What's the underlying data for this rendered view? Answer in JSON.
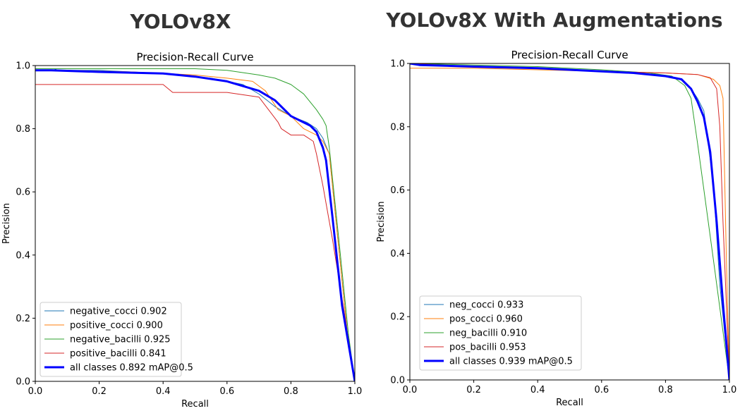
{
  "chart_data": [
    {
      "type": "line",
      "panel_title": "YOLOv8X",
      "title": "Precision-Recall Curve",
      "xlabel": "Recall",
      "ylabel": "Precision",
      "xlim": [
        0,
        1
      ],
      "ylim": [
        0,
        1
      ],
      "xticks": [
        "0.0",
        "0.2",
        "0.4",
        "0.6",
        "0.8",
        "1.0"
      ],
      "yticks": [
        "0.0",
        "0.2",
        "0.4",
        "0.6",
        "0.8",
        "1.0"
      ],
      "grid": false,
      "legend_position": "lower-left",
      "series": [
        {
          "name": "negative_cocci 0.902",
          "color": "#1f77b4",
          "width": 1,
          "x": [
            0,
            0.06,
            0.07,
            0.2,
            0.4,
            0.55,
            0.65,
            0.7,
            0.75,
            0.8,
            0.85,
            0.88,
            0.9,
            0.92,
            0.95,
            0.98,
            1.0
          ],
          "y": [
            0.99,
            0.99,
            0.985,
            0.985,
            0.975,
            0.96,
            0.94,
            0.91,
            0.87,
            0.84,
            0.82,
            0.8,
            0.77,
            0.72,
            0.42,
            0.12,
            0.0
          ]
        },
        {
          "name": "positive_cocci 0.900",
          "color": "#ff7f0e",
          "width": 1,
          "x": [
            0,
            0.1,
            0.3,
            0.5,
            0.6,
            0.68,
            0.72,
            0.76,
            0.8,
            0.84,
            0.88,
            0.9,
            0.92,
            0.95,
            0.98,
            1.0
          ],
          "y": [
            0.985,
            0.985,
            0.98,
            0.97,
            0.96,
            0.95,
            0.92,
            0.86,
            0.84,
            0.8,
            0.78,
            0.76,
            0.72,
            0.42,
            0.12,
            0.0
          ]
        },
        {
          "name": "negative_bacilli 0.925",
          "color": "#2ca02c",
          "width": 1,
          "x": [
            0,
            0.15,
            0.3,
            0.5,
            0.6,
            0.7,
            0.75,
            0.8,
            0.84,
            0.88,
            0.9,
            0.91,
            0.92,
            0.95,
            0.98,
            1.0
          ],
          "y": [
            0.99,
            0.99,
            0.99,
            0.99,
            0.985,
            0.97,
            0.96,
            0.94,
            0.91,
            0.86,
            0.83,
            0.81,
            0.74,
            0.45,
            0.15,
            0.0
          ]
        },
        {
          "name": "positive_bacilli 0.841",
          "color": "#d62728",
          "width": 1,
          "x": [
            0,
            0.4,
            0.43,
            0.6,
            0.7,
            0.73,
            0.76,
            0.77,
            0.8,
            0.84,
            0.87,
            0.88,
            0.9,
            0.93,
            0.97,
            1.0
          ],
          "y": [
            0.94,
            0.94,
            0.915,
            0.915,
            0.9,
            0.86,
            0.82,
            0.8,
            0.78,
            0.78,
            0.76,
            0.72,
            0.62,
            0.45,
            0.2,
            0.0
          ]
        },
        {
          "name": "all classes 0.892 mAP@0.5",
          "color": "#0000ff",
          "width": 3,
          "x": [
            0,
            0.05,
            0.2,
            0.4,
            0.5,
            0.6,
            0.7,
            0.75,
            0.78,
            0.8,
            0.84,
            0.86,
            0.88,
            0.9,
            0.91,
            0.93,
            0.96,
            1.0
          ],
          "y": [
            0.985,
            0.985,
            0.98,
            0.975,
            0.965,
            0.95,
            0.92,
            0.89,
            0.86,
            0.84,
            0.82,
            0.81,
            0.79,
            0.74,
            0.7,
            0.52,
            0.24,
            0.0
          ]
        }
      ]
    },
    {
      "type": "line",
      "panel_title": "YOLOv8X With Augmentations",
      "title": "Precision-Recall Curve",
      "xlabel": "Recall",
      "ylabel": "Precision",
      "xlim": [
        0,
        1
      ],
      "ylim": [
        0,
        1
      ],
      "xticks": [
        "0.0",
        "0.2",
        "0.4",
        "0.6",
        "0.8",
        "1.0"
      ],
      "yticks": [
        "0.0",
        "0.2",
        "0.4",
        "0.6",
        "0.8",
        "1.0"
      ],
      "grid": false,
      "legend_position": "lower-left",
      "series": [
        {
          "name": "neg_cocci 0.933",
          "color": "#1f77b4",
          "width": 1,
          "x": [
            0,
            0.02,
            0.2,
            0.4,
            0.6,
            0.7,
            0.8,
            0.85,
            0.88,
            0.9,
            0.92,
            0.95,
            0.97,
            1.0
          ],
          "y": [
            1.0,
            0.995,
            0.99,
            0.985,
            0.975,
            0.97,
            0.96,
            0.95,
            0.92,
            0.89,
            0.85,
            0.62,
            0.3,
            0.0
          ]
        },
        {
          "name": "pos_cocci 0.960",
          "color": "#ff7f0e",
          "width": 1,
          "x": [
            0,
            0.03,
            0.2,
            0.4,
            0.6,
            0.8,
            0.9,
            0.95,
            0.97,
            0.98,
            0.99,
            1.0
          ],
          "y": [
            0.985,
            0.985,
            0.985,
            0.98,
            0.975,
            0.97,
            0.965,
            0.95,
            0.93,
            0.89,
            0.4,
            0.0
          ]
        },
        {
          "name": "neg_bacilli 0.910",
          "color": "#2ca02c",
          "width": 1,
          "x": [
            0,
            0.2,
            0.4,
            0.6,
            0.75,
            0.82,
            0.86,
            0.88,
            0.9,
            0.95,
            1.0
          ],
          "y": [
            1.0,
            0.995,
            0.99,
            0.98,
            0.97,
            0.96,
            0.93,
            0.89,
            0.75,
            0.38,
            0.0
          ]
        },
        {
          "name": "pos_bacilli 0.953",
          "color": "#d62728",
          "width": 1,
          "x": [
            0,
            0.2,
            0.4,
            0.6,
            0.8,
            0.9,
            0.94,
            0.96,
            0.97,
            0.98,
            1.0
          ],
          "y": [
            1.0,
            0.99,
            0.985,
            0.975,
            0.97,
            0.965,
            0.955,
            0.92,
            0.8,
            0.5,
            0.0
          ]
        },
        {
          "name": "all classes 0.939 mAP@0.5",
          "color": "#0000ff",
          "width": 3,
          "x": [
            0,
            0.03,
            0.2,
            0.4,
            0.6,
            0.7,
            0.8,
            0.85,
            0.88,
            0.9,
            0.92,
            0.94,
            0.96,
            0.98,
            1.0
          ],
          "y": [
            1.0,
            0.995,
            0.99,
            0.985,
            0.975,
            0.97,
            0.96,
            0.95,
            0.92,
            0.88,
            0.83,
            0.72,
            0.5,
            0.24,
            0.0
          ]
        }
      ]
    }
  ]
}
